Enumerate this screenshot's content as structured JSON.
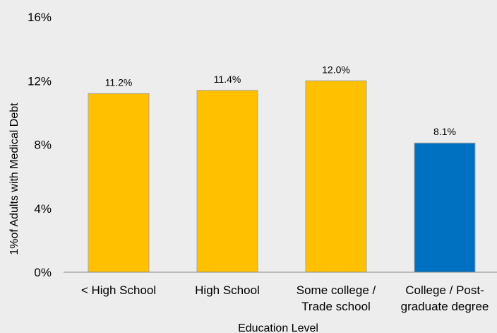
{
  "chart_data": {
    "type": "bar",
    "title": "",
    "xlabel": "Education Level",
    "ylabel": "1%of Adults with Medical Debt",
    "categories": [
      [
        "< High School"
      ],
      [
        "High School"
      ],
      [
        "Some college /",
        "Trade school"
      ],
      [
        "College / Post-",
        "graduate degree"
      ]
    ],
    "values": [
      11.2,
      11.4,
      12.0,
      8.1
    ],
    "data_labels": [
      "11.2%",
      "11.4%",
      "12.0%",
      "8.1%"
    ],
    "bar_colors": [
      "#ffc000",
      "#ffc000",
      "#ffc000",
      "#0070c0"
    ],
    "ylim": [
      0,
      16
    ],
    "yticks": [
      0,
      4,
      8,
      12,
      16
    ],
    "ytick_labels": [
      "0%",
      "4%",
      "8%",
      "12%",
      "16%"
    ],
    "grid": false,
    "legend": "none",
    "colors": {
      "background": "#ededed",
      "axis": "#888888",
      "bar_edge": "#a6a6a6"
    }
  }
}
